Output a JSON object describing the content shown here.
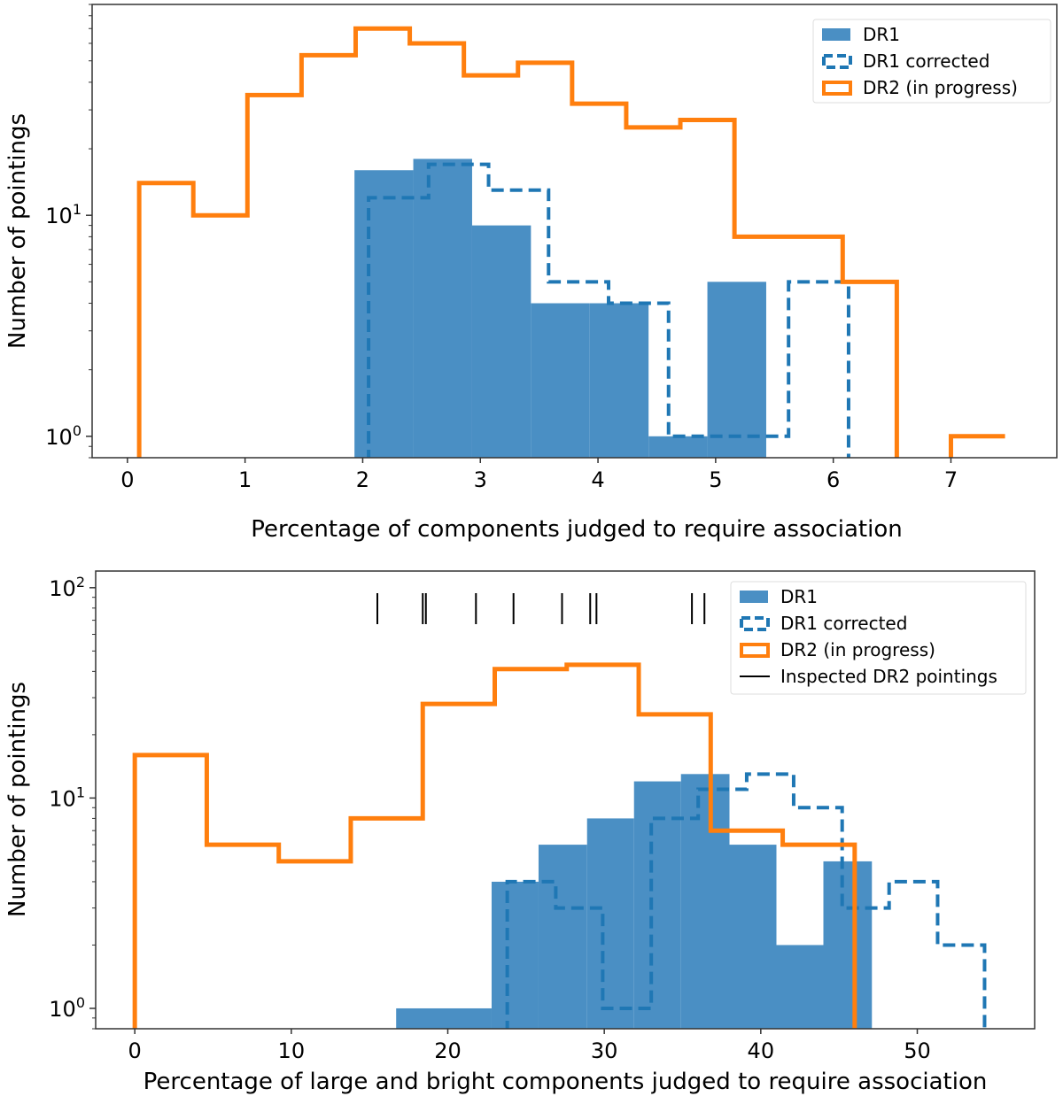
{
  "colors": {
    "dr1_fill": "#4a8fc4",
    "dr1_corrected": "#1f77b4",
    "dr2": "#ff7f0e",
    "inspected": "#000000",
    "axis": "#333333"
  },
  "chart_data": [
    {
      "type": "bar",
      "subtype": "histogram",
      "xlabel": "Percentage of components judged to require association",
      "ylabel": "Number of pointings",
      "yscale": "log",
      "xlim": [
        -0.3,
        7.9
      ],
      "ylim": [
        0.8,
        90
      ],
      "xticks": [
        0,
        1,
        2,
        3,
        4,
        5,
        6,
        7
      ],
      "xtick_labels": [
        "0",
        "1",
        "2",
        "3",
        "4",
        "5",
        "6",
        "7"
      ],
      "yticks": [
        1,
        10
      ],
      "ytick_labels": [
        {
          "base": "10",
          "exp": "0"
        },
        {
          "base": "10",
          "exp": "1"
        }
      ],
      "legend": {
        "position": "top-right",
        "entries": [
          "DR1",
          "DR1 corrected",
          "DR2 (in progress)"
        ]
      },
      "series": [
        {
          "name": "DR1",
          "style": "filled",
          "edges": [
            1.93,
            2.43,
            2.93,
            3.43,
            3.93,
            4.43,
            4.93,
            5.43
          ],
          "values": [
            16,
            18,
            9,
            4,
            4,
            1,
            5
          ]
        },
        {
          "name": "DR1 corrected",
          "style": "dashed-step",
          "edges": [
            2.05,
            2.56,
            3.07,
            3.58,
            4.09,
            4.6,
            5.11,
            5.62,
            6.13
          ],
          "values": [
            12,
            17,
            13,
            5,
            4,
            1,
            1,
            5
          ]
        },
        {
          "name": "DR2 (in progress)",
          "style": "solid-step",
          "edges": [
            0.1,
            0.56,
            1.02,
            1.48,
            1.94,
            2.4,
            2.86,
            3.32,
            3.78,
            4.24,
            4.7,
            5.16,
            5.62,
            6.08,
            6.54,
            7.0,
            7.46
          ],
          "values": [
            14,
            10,
            35,
            53,
            70,
            60,
            43,
            49,
            32,
            25,
            27,
            8,
            8,
            5,
            0,
            1,
            1
          ]
        }
      ]
    },
    {
      "type": "bar",
      "subtype": "histogram",
      "xlabel": "Percentage of large and bright components judged to require association",
      "ylabel": "Number of pointings",
      "yscale": "log",
      "xlim": [
        -2.5,
        57.5
      ],
      "ylim": [
        0.8,
        120
      ],
      "xticks": [
        0,
        10,
        20,
        30,
        40,
        50
      ],
      "xtick_labels": [
        "0",
        "10",
        "20",
        "30",
        "40",
        "50"
      ],
      "yticks": [
        1,
        10,
        100
      ],
      "ytick_labels": [
        {
          "base": "10",
          "exp": "0"
        },
        {
          "base": "10",
          "exp": "1"
        },
        {
          "base": "10",
          "exp": "2"
        }
      ],
      "legend": {
        "position": "top-right",
        "entries": [
          "DR1",
          "DR1 corrected",
          "DR2 (in progress)",
          "Inspected DR2 pointings"
        ]
      },
      "inspected_pointings": [
        15.5,
        18.4,
        18.6,
        21.8,
        24.2,
        27.3,
        29.1,
        29.5,
        35.6,
        36.4
      ],
      "series": [
        {
          "name": "DR1",
          "style": "filled",
          "edges": [
            16.7,
            22.8,
            25.8,
            28.9,
            31.9,
            34.9,
            38.0,
            41.0,
            44.0,
            47.1
          ],
          "values": [
            1,
            4,
            6,
            8,
            12,
            13,
            6,
            2,
            5
          ]
        },
        {
          "name": "DR1 corrected",
          "style": "dashed-step",
          "edges": [
            23.8,
            26.9,
            29.9,
            33.0,
            36.0,
            39.1,
            42.1,
            45.2,
            48.2,
            51.3,
            54.3
          ],
          "values": [
            4,
            3,
            1,
            8,
            11,
            13,
            9,
            3,
            4,
            2
          ]
        },
        {
          "name": "DR2 (in progress)",
          "style": "solid-step",
          "edges": [
            0,
            4.6,
            9.2,
            13.8,
            18.4,
            23.0,
            27.6,
            32.2,
            36.8,
            41.4,
            46.0
          ],
          "values": [
            16,
            6,
            5,
            8,
            28,
            41,
            43,
            25,
            7,
            6
          ]
        }
      ]
    }
  ]
}
